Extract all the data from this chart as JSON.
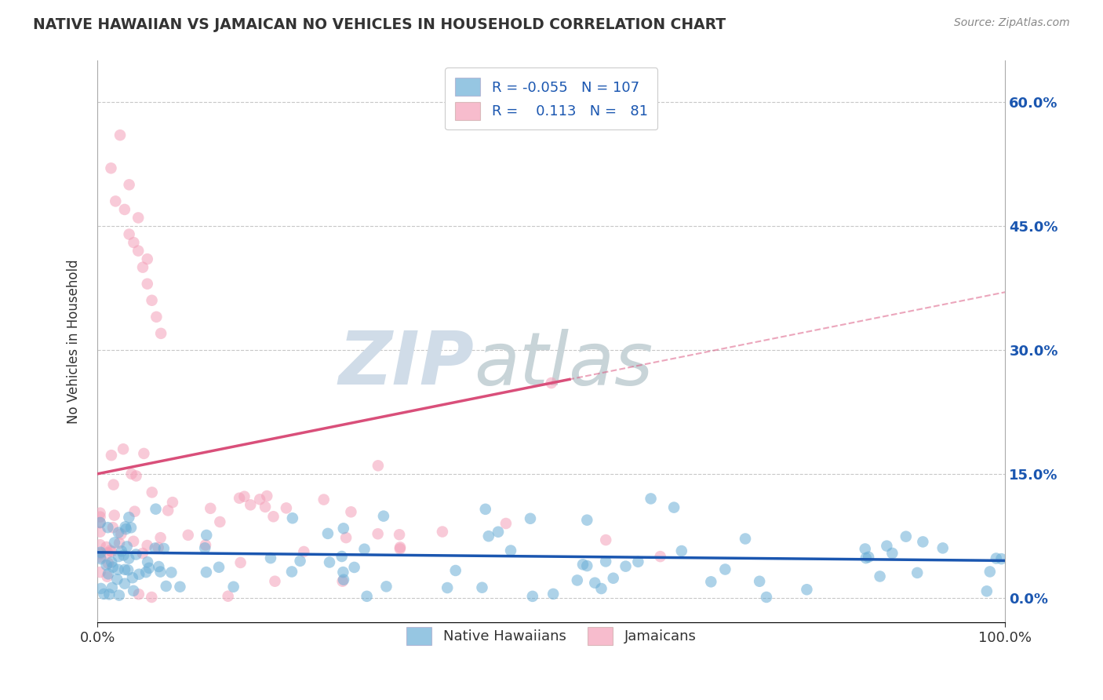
{
  "title": "NATIVE HAWAIIAN VS JAMAICAN NO VEHICLES IN HOUSEHOLD CORRELATION CHART",
  "source": "Source: ZipAtlas.com",
  "ylabel": "No Vehicles in Household",
  "xlim": [
    0,
    100
  ],
  "ylim": [
    -3,
    65
  ],
  "yticks_pct": [
    0,
    15,
    30,
    45,
    60
  ],
  "ytick_pct_labels": [
    "0.0%",
    "15.0%",
    "30.0%",
    "45.0%",
    "60.0%"
  ],
  "xtick_labels": [
    "0.0%",
    "100.0%"
  ],
  "legend_bottom_labels": [
    "Native Hawaiians",
    "Jamaicans"
  ],
  "n_blue": 107,
  "n_pink": 81,
  "r_blue": -0.055,
  "r_pink": 0.113,
  "blue_color": "#6aaed6",
  "pink_color": "#f4a0b8",
  "blue_line_color": "#1a56b0",
  "pink_line_color": "#d94f7a",
  "background_color": "#ffffff",
  "grid_color": "#c8c8c8",
  "title_color": "#333333",
  "source_color": "#888888",
  "axis_label_color": "#1a56b0",
  "watermark_zip_color": "#d0dce8",
  "watermark_atlas_color": "#c8d4d8"
}
